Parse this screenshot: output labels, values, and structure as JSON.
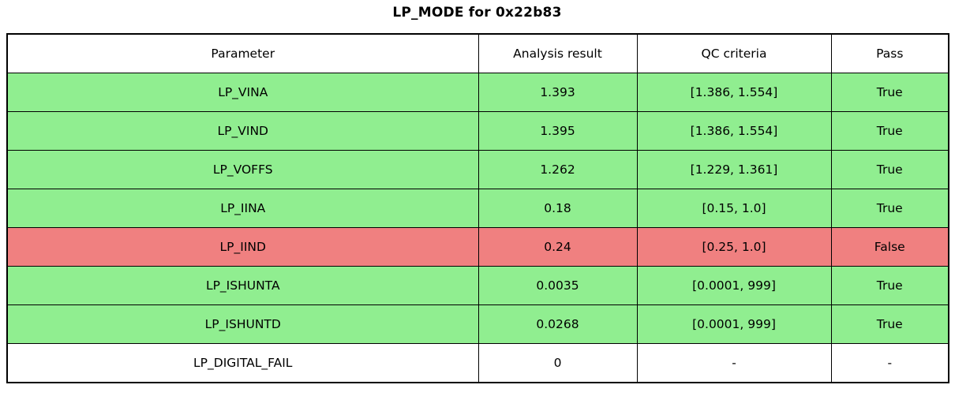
{
  "title": "LP_MODE for 0x22b83",
  "colors": {
    "pass_row": "#90EE90",
    "fail_row": "#F08080",
    "neutral_row": "#FFFFFF",
    "border": "#000000",
    "text": "#000000"
  },
  "chart_data": {
    "type": "table",
    "title": "LP_MODE for 0x22b83",
    "columns": [
      "Parameter",
      "Analysis result",
      "QC criteria",
      "Pass"
    ],
    "rows": [
      {
        "parameter": "LP_VINA",
        "analysis_result": "1.393",
        "qc_criteria": "[1.386, 1.554]",
        "pass": "True",
        "status": "pass"
      },
      {
        "parameter": "LP_VIND",
        "analysis_result": "1.395",
        "qc_criteria": "[1.386, 1.554]",
        "pass": "True",
        "status": "pass"
      },
      {
        "parameter": "LP_VOFFS",
        "analysis_result": "1.262",
        "qc_criteria": "[1.229, 1.361]",
        "pass": "True",
        "status": "pass"
      },
      {
        "parameter": "LP_IINA",
        "analysis_result": "0.18",
        "qc_criteria": "[0.15, 1.0]",
        "pass": "True",
        "status": "pass"
      },
      {
        "parameter": "LP_IIND",
        "analysis_result": "0.24",
        "qc_criteria": "[0.25, 1.0]",
        "pass": "False",
        "status": "fail"
      },
      {
        "parameter": "LP_ISHUNTA",
        "analysis_result": "0.0035",
        "qc_criteria": "[0.0001, 999]",
        "pass": "True",
        "status": "pass"
      },
      {
        "parameter": "LP_ISHUNTD",
        "analysis_result": "0.0268",
        "qc_criteria": "[0.0001, 999]",
        "pass": "True",
        "status": "pass"
      },
      {
        "parameter": "LP_DIGITAL_FAIL",
        "analysis_result": "0",
        "qc_criteria": "-",
        "pass": "-",
        "status": "neutral"
      }
    ]
  }
}
